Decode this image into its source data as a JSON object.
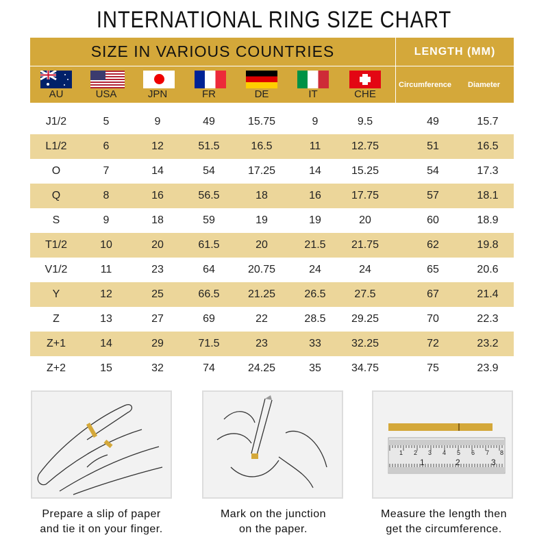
{
  "title": "INTERNATIONAL RING SIZE CHART",
  "header": {
    "countries_label": "SIZE IN VARIOUS COUNTRIES",
    "length_label": "LENGTH (MM)",
    "columns": [
      "AU",
      "USA",
      "JPN",
      "FR",
      "DE",
      "IT",
      "CHE"
    ],
    "length_columns": [
      "Circumference",
      "Diameter"
    ]
  },
  "colors": {
    "header_gold": "#d4a83a",
    "row_alt": "#ecd69a"
  },
  "chart_data": {
    "type": "table",
    "columns": [
      "AU",
      "USA",
      "JPN",
      "FR",
      "DE",
      "IT",
      "CHE",
      "Circumference",
      "Diameter"
    ],
    "rows": [
      [
        "J1/2",
        "5",
        "9",
        "49",
        "15.75",
        "9",
        "9.5",
        "49",
        "15.7"
      ],
      [
        "L1/2",
        "6",
        "12",
        "51.5",
        "16.5",
        "11",
        "12.75",
        "51",
        "16.5"
      ],
      [
        "O",
        "7",
        "14",
        "54",
        "17.25",
        "14",
        "15.25",
        "54",
        "17.3"
      ],
      [
        "Q",
        "8",
        "16",
        "56.5",
        "18",
        "16",
        "17.75",
        "57",
        "18.1"
      ],
      [
        "S",
        "9",
        "18",
        "59",
        "19",
        "19",
        "20",
        "60",
        "18.9"
      ],
      [
        "T1/2",
        "10",
        "20",
        "61.5",
        "20",
        "21.5",
        "21.75",
        "62",
        "19.8"
      ],
      [
        "V1/2",
        "11",
        "23",
        "64",
        "20.75",
        "24",
        "24",
        "65",
        "20.6"
      ],
      [
        "Y",
        "12",
        "25",
        "66.5",
        "21.25",
        "26.5",
        "27.5",
        "67",
        "21.4"
      ],
      [
        "Z",
        "13",
        "27",
        "69",
        "22",
        "28.5",
        "29.25",
        "70",
        "22.3"
      ],
      [
        "Z+1",
        "14",
        "29",
        "71.5",
        "23",
        "33",
        "32.25",
        "72",
        "23.2"
      ],
      [
        "Z+2",
        "15",
        "32",
        "74",
        "24.25",
        "35",
        "34.75",
        "75",
        "23.9"
      ]
    ]
  },
  "steps": [
    {
      "line1": "Prepare a slip of paper",
      "line2": "and tie it on your finger."
    },
    {
      "line1": "Mark on the junction",
      "line2": "on the paper."
    },
    {
      "line1": "Measure the length then",
      "line2": "get the circumference."
    }
  ],
  "ruler": {
    "top_numbers": [
      "1",
      "2",
      "3",
      "4",
      "5",
      "6",
      "7",
      "8"
    ],
    "bottom_numbers": [
      "1",
      "2",
      "3"
    ]
  }
}
